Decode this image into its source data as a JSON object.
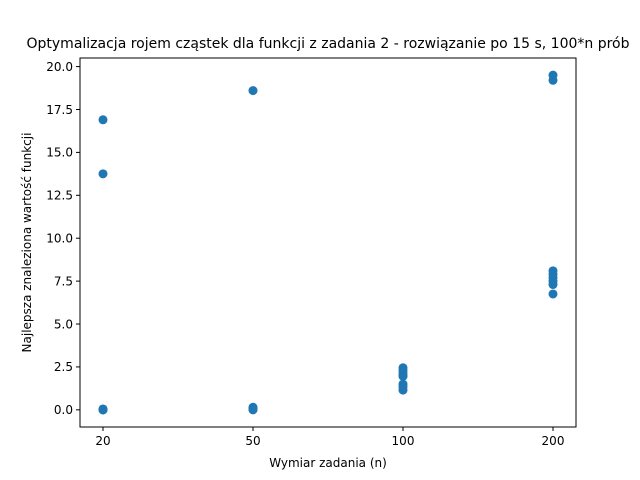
{
  "chart_data": {
    "type": "scatter",
    "title": "Optymalizacja rojem cząstek dla funkcji z zadania 2 - rozwiązanie po 15 s, 100*n prób",
    "xlabel": "Wymiar zadania (n)",
    "ylabel": "Najlepsza znaleziona wartość funkcji",
    "categories": [
      "20",
      "50",
      "100",
      "200"
    ],
    "yticks": [
      "0.0",
      "2.5",
      "5.0",
      "7.5",
      "10.0",
      "12.5",
      "15.0",
      "17.5",
      "20.0"
    ],
    "ylim": [
      -1.0,
      20.5
    ],
    "grid": false,
    "marker_color": "#1f77b4",
    "points": [
      {
        "x": "20",
        "y": 16.9
      },
      {
        "x": "20",
        "y": 13.75
      },
      {
        "x": "20",
        "y": 0.05
      },
      {
        "x": "20",
        "y": 0.02
      },
      {
        "x": "20",
        "y": 0.0
      },
      {
        "x": "20",
        "y": 0.0
      },
      {
        "x": "20",
        "y": 0.0
      },
      {
        "x": "50",
        "y": 18.6
      },
      {
        "x": "50",
        "y": 0.15
      },
      {
        "x": "50",
        "y": 0.1
      },
      {
        "x": "50",
        "y": 0.05
      },
      {
        "x": "50",
        "y": 0.02
      },
      {
        "x": "50",
        "y": 0.0
      },
      {
        "x": "100",
        "y": 2.45
      },
      {
        "x": "100",
        "y": 2.3
      },
      {
        "x": "100",
        "y": 2.15
      },
      {
        "x": "100",
        "y": 2.0
      },
      {
        "x": "100",
        "y": 1.95
      },
      {
        "x": "100",
        "y": 1.5
      },
      {
        "x": "100",
        "y": 1.35
      },
      {
        "x": "100",
        "y": 1.15
      },
      {
        "x": "200",
        "y": 19.5
      },
      {
        "x": "200",
        "y": 19.2
      },
      {
        "x": "200",
        "y": 8.1
      },
      {
        "x": "200",
        "y": 7.9
      },
      {
        "x": "200",
        "y": 7.7
      },
      {
        "x": "200",
        "y": 7.5
      },
      {
        "x": "200",
        "y": 7.3
      },
      {
        "x": "200",
        "y": 6.75
      }
    ]
  }
}
